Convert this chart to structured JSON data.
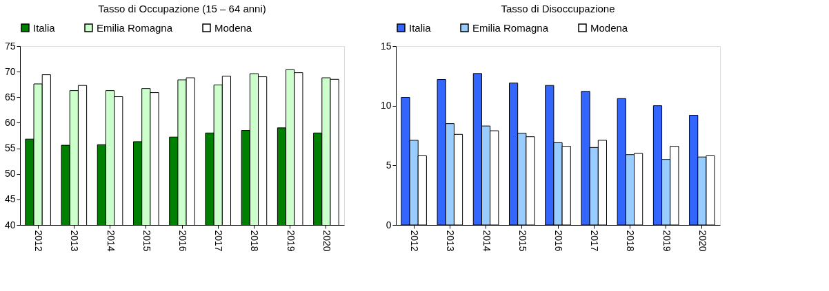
{
  "chart_data": [
    {
      "type": "bar",
      "title": "Tasso di Occupazione (15 – 64 anni)",
      "categories": [
        "2012",
        "2013",
        "2014",
        "2015",
        "2016",
        "2017",
        "2018",
        "2019",
        "2020"
      ],
      "series": [
        {
          "name": "Italia",
          "color": "#008000",
          "values": [
            56.8,
            55.6,
            55.7,
            56.3,
            57.2,
            58.0,
            58.5,
            59.0,
            58.0
          ]
        },
        {
          "name": "Emilia Romagna",
          "color": "#ccffcc",
          "values": [
            67.6,
            66.3,
            66.3,
            66.7,
            68.4,
            67.4,
            69.6,
            70.4,
            68.8
          ]
        },
        {
          "name": "Modena",
          "color": "#ffffff",
          "values": [
            69.4,
            67.3,
            65.1,
            65.9,
            68.8,
            69.1,
            69.0,
            69.8,
            68.5
          ]
        }
      ],
      "ylim": [
        40,
        75
      ],
      "yticks": [
        40,
        45,
        50,
        55,
        60,
        65,
        70,
        75
      ],
      "grid": false,
      "legend": "top"
    },
    {
      "type": "bar",
      "title": "Tasso di Disoccupazione",
      "categories": [
        "2012",
        "2013",
        "2014",
        "2015",
        "2016",
        "2017",
        "2018",
        "2019",
        "2020"
      ],
      "series": [
        {
          "name": "Italia",
          "color": "#3366ff",
          "values": [
            10.7,
            12.2,
            12.7,
            11.9,
            11.7,
            11.2,
            10.6,
            10.0,
            9.2
          ]
        },
        {
          "name": "Emilia Romagna",
          "color": "#99ccff",
          "values": [
            7.1,
            8.5,
            8.3,
            7.7,
            6.9,
            6.5,
            5.9,
            5.5,
            5.7
          ]
        },
        {
          "name": "Modena",
          "color": "#ffffff",
          "values": [
            5.8,
            7.6,
            7.9,
            7.4,
            6.6,
            7.1,
            6.0,
            6.6,
            5.8
          ]
        }
      ],
      "ylim": [
        0,
        15
      ],
      "yticks": [
        0,
        5,
        10,
        15
      ],
      "grid": false,
      "legend": "top"
    }
  ]
}
